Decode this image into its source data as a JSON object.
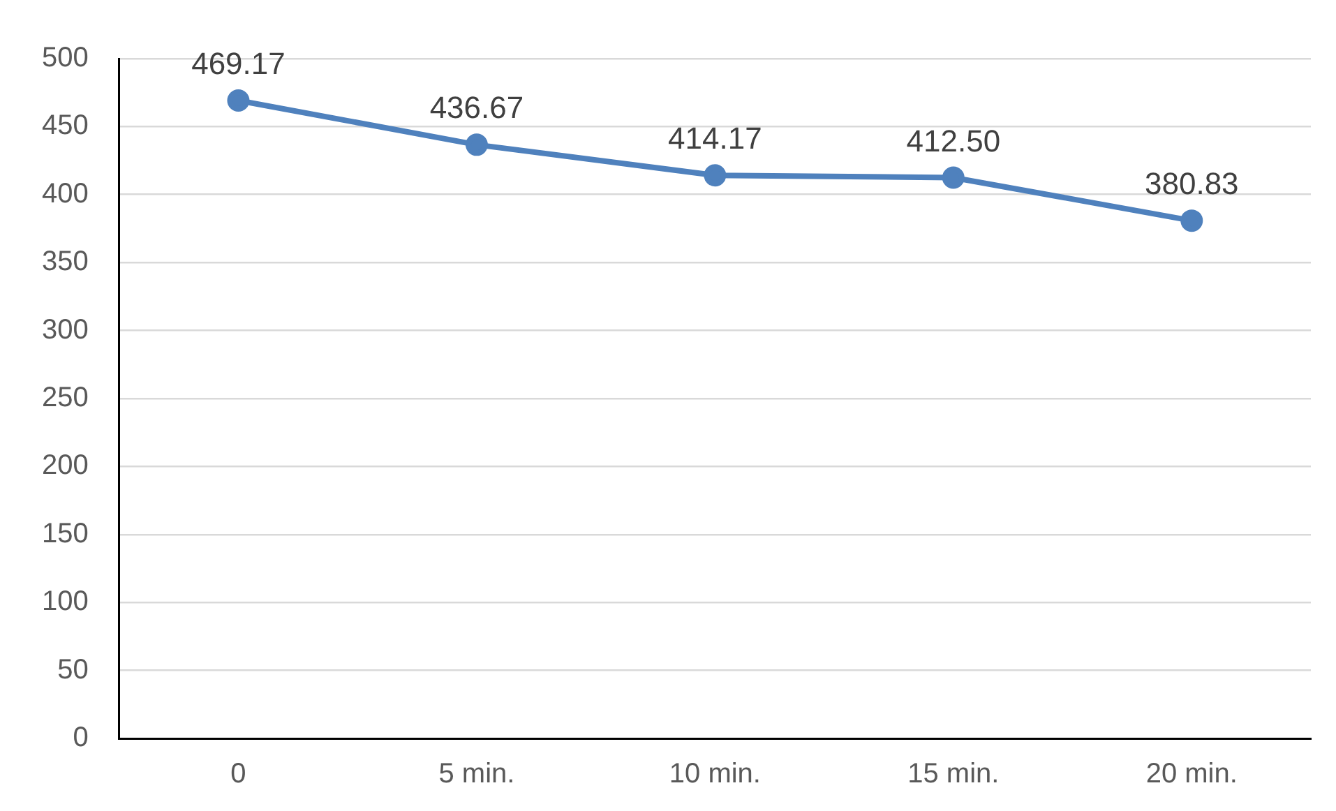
{
  "chart_data": {
    "type": "line",
    "categories": [
      "0",
      "5 min.",
      "10 min.",
      "15 min.",
      "20 min."
    ],
    "series": [
      {
        "color": "#4f81bd",
        "values": [
          469.17,
          436.67,
          414.17,
          412.5,
          380.83
        ],
        "value_labels": [
          "469.17",
          "436.67",
          "414.17",
          "412.50",
          "380.83"
        ]
      }
    ],
    "ylim": [
      0,
      500
    ],
    "yticks": [
      0,
      50,
      100,
      150,
      200,
      250,
      300,
      350,
      400,
      450,
      500
    ],
    "grid": "y",
    "legend": false,
    "marker": "circle",
    "line_style": "solid"
  }
}
